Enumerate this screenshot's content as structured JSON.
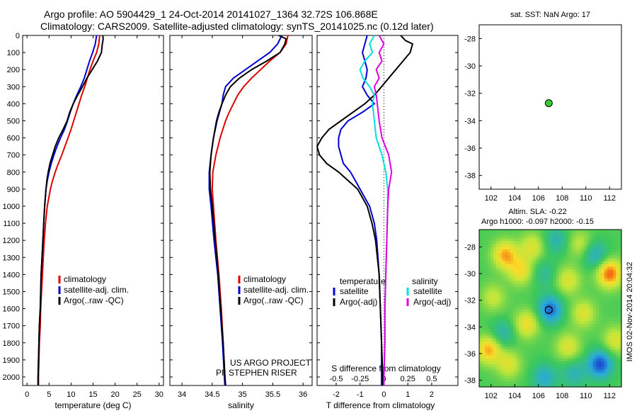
{
  "header": {
    "line1": "Argo profile: AO 5904429_1 24-Oct-2014 20141027_1364 32.72S 106.868E",
    "line2": "Climatology: CARS2009. Satellite-adjusted climatology: synTS_20141025.nc (0.12d later)"
  },
  "colors": {
    "climatology": "#e00000",
    "satellite": "#0000d0",
    "argo": "#000000",
    "sal_sat": "#00e0e0",
    "sal_argo": "#e000e0",
    "dot": "#33cc33"
  },
  "chart_data": [
    {
      "type": "line",
      "id": "temperature",
      "xlabel": "temperature (deg C)",
      "ylabel": "",
      "xlim": [
        -1,
        31
      ],
      "ylim": [
        2050,
        0
      ],
      "xticks": [
        0,
        5,
        10,
        15,
        20,
        25,
        30
      ],
      "yticks": [
        0,
        100,
        200,
        300,
        400,
        500,
        600,
        700,
        800,
        900,
        1000,
        1100,
        1200,
        1300,
        1400,
        1500,
        1600,
        1700,
        1800,
        1900,
        2000
      ],
      "legend": [
        "climatology",
        "satellite-adj. clim.",
        "Argo(..raw -QC)"
      ],
      "series": [
        {
          "name": "climatology",
          "depth": [
            0,
            50,
            100,
            150,
            200,
            250,
            300,
            350,
            400,
            450,
            500,
            550,
            600,
            650,
            700,
            750,
            800,
            850,
            900,
            1000,
            1100,
            1200,
            1300,
            1400,
            1500,
            1600,
            1700,
            1800,
            1900,
            2000,
            2050
          ],
          "values": [
            16.5,
            16.3,
            15.8,
            15.0,
            14.3,
            13.7,
            13.1,
            12.4,
            11.8,
            11.2,
            10.6,
            10.0,
            9.3,
            8.6,
            7.9,
            7.1,
            6.4,
            5.8,
            5.3,
            4.6,
            4.2,
            3.9,
            3.7,
            3.5,
            3.3,
            3.1,
            3.0,
            2.8,
            2.7,
            2.6,
            2.6
          ]
        },
        {
          "name": "satellite-adj. clim.",
          "depth": [
            0,
            50,
            100,
            150,
            200,
            250,
            300,
            350,
            400,
            450,
            500,
            550,
            600,
            650,
            700,
            750,
            800,
            850,
            900,
            1000,
            1100,
            1200,
            1300,
            1400,
            1500,
            1600,
            1700,
            1800,
            1900,
            2000,
            2050
          ],
          "values": [
            15.8,
            15.5,
            14.9,
            14.2,
            13.6,
            13.0,
            12.2,
            11.3,
            10.5,
            9.8,
            9.2,
            8.5,
            7.6,
            6.8,
            6.1,
            5.5,
            5.0,
            4.6,
            4.3,
            4.0,
            3.8,
            3.6,
            3.4,
            3.2,
            3.1,
            3.0,
            2.8,
            2.7,
            2.6,
            2.5,
            2.5
          ]
        },
        {
          "name": "Argo(..raw -QC)",
          "depth": [
            0,
            20,
            50,
            100,
            150,
            200,
            250,
            300,
            350,
            400,
            450,
            500,
            550,
            600,
            650,
            700,
            750,
            800,
            850,
            900,
            1000,
            1100,
            1200,
            1300,
            1400,
            1500,
            1600,
            1700,
            1800,
            1900,
            2000,
            2050
          ],
          "values": [
            17.2,
            17.3,
            17.1,
            16.9,
            16.0,
            14.8,
            13.6,
            12.6,
            11.5,
            10.5,
            9.7,
            9.1,
            8.2,
            7.2,
            6.4,
            5.8,
            5.2,
            4.8,
            4.5,
            4.3,
            4.0,
            3.8,
            3.6,
            3.4,
            3.2,
            3.1,
            3.0,
            2.8,
            2.7,
            2.6,
            2.5,
            2.5
          ]
        }
      ]
    },
    {
      "type": "line",
      "id": "salinity",
      "xlabel": "salinity",
      "ylabel": "",
      "xlim": [
        33.8,
        36.15
      ],
      "ylim": [
        2050,
        0
      ],
      "xticks": [
        34,
        34.5,
        35,
        35.5,
        36
      ],
      "xticklabels": [
        "34",
        "34.5",
        "35",
        "35.5",
        "36"
      ],
      "legend": [
        "climatology",
        "satellite-adj. clim.",
        "Argo(..raw -QC)"
      ],
      "annotations": [
        "US ARGO PROJECT",
        "PI: STEPHEN RISER"
      ],
      "series": [
        {
          "name": "climatology",
          "depth": [
            0,
            50,
            100,
            150,
            200,
            250,
            300,
            350,
            400,
            450,
            500,
            600,
            700,
            800,
            900,
            1000,
            1200,
            1400,
            1600,
            1800,
            2000,
            2050
          ],
          "values": [
            35.75,
            35.72,
            35.62,
            35.45,
            35.3,
            35.15,
            35.02,
            34.92,
            34.85,
            34.78,
            34.72,
            34.63,
            34.56,
            34.51,
            34.5,
            34.52,
            34.56,
            34.61,
            34.65,
            34.68,
            34.71,
            34.72
          ]
        },
        {
          "name": "satellite-adj. clim.",
          "depth": [
            0,
            50,
            100,
            150,
            200,
            250,
            300,
            350,
            400,
            450,
            500,
            600,
            700,
            800,
            900,
            1000,
            1200,
            1400,
            1600,
            1800,
            2000,
            2050
          ],
          "values": [
            35.65,
            35.58,
            35.45,
            35.25,
            35.05,
            34.85,
            34.72,
            34.68,
            34.66,
            34.62,
            34.58,
            34.52,
            34.48,
            34.45,
            34.45,
            34.48,
            34.53,
            34.59,
            34.63,
            34.67,
            34.7,
            34.71
          ]
        },
        {
          "name": "Argo(..raw -QC)",
          "depth": [
            0,
            20,
            50,
            100,
            150,
            200,
            250,
            300,
            350,
            400,
            450,
            500,
            600,
            700,
            800,
            900,
            1000,
            1200,
            1400,
            1600,
            1800,
            2000,
            2050
          ],
          "values": [
            35.6,
            35.72,
            35.7,
            35.62,
            35.4,
            35.15,
            34.95,
            34.8,
            34.72,
            34.66,
            34.61,
            34.57,
            34.52,
            34.48,
            34.46,
            34.47,
            34.5,
            34.55,
            34.6,
            34.64,
            34.68,
            34.71,
            34.72
          ]
        }
      ]
    },
    {
      "type": "line",
      "id": "differences",
      "xlabel": "T difference from climatology",
      "xlabel_top": "S difference from climatology",
      "xlim": [
        -2.8,
        3.1
      ],
      "ylim": [
        2050,
        0
      ],
      "xticks": [
        -2,
        -1,
        0,
        1,
        2
      ],
      "xticks_top": [
        -0.5,
        -0.25,
        0,
        0.25,
        0.5
      ],
      "xticklabels_top": [
        "-0.5",
        "-0.25",
        "0",
        "0.25",
        "0.5"
      ],
      "legend_headers": [
        "temperature",
        "salinity"
      ],
      "legend": [
        "satellite",
        "Argo(-adj)",
        "satellite",
        "Argo(-adj)"
      ],
      "series": [
        {
          "name": "temperature satellite",
          "depth": [
            0,
            50,
            100,
            150,
            200,
            250,
            300,
            350,
            400,
            450,
            500,
            550,
            600,
            650,
            700,
            750,
            800,
            850,
            900,
            1000,
            1100,
            1200,
            1400,
            1600,
            1800,
            2000,
            2050
          ],
          "values": [
            -0.7,
            -0.8,
            -0.9,
            -0.8,
            -0.7,
            -0.75,
            -0.9,
            -0.7,
            -0.4,
            -0.9,
            -1.5,
            -1.8,
            -1.9,
            -1.9,
            -1.8,
            -1.7,
            -1.4,
            -1.2,
            -1.0,
            -0.6,
            -0.4,
            -0.3,
            -0.2,
            -0.15,
            -0.1,
            -0.1,
            -0.1
          ]
        },
        {
          "name": "temperature Argo(-adj)",
          "depth": [
            0,
            30,
            50,
            100,
            150,
            200,
            250,
            300,
            350,
            400,
            450,
            500,
            550,
            600,
            650,
            700,
            750,
            800,
            850,
            900,
            1000,
            1100,
            1200,
            1400,
            1600,
            1800,
            2000,
            2050
          ],
          "values": [
            0.7,
            0.9,
            1.2,
            1.1,
            0.8,
            0.5,
            0.2,
            -0.1,
            -0.4,
            -0.8,
            -1.3,
            -1.8,
            -2.3,
            -2.6,
            -2.8,
            -2.7,
            -2.4,
            -1.9,
            -1.5,
            -1.1,
            -0.7,
            -0.5,
            -0.35,
            -0.2,
            -0.15,
            -0.1,
            -0.05,
            -0.05
          ]
        },
        {
          "name": "salinity satellite",
          "depth": [
            0,
            50,
            100,
            150,
            200,
            250,
            300,
            350,
            400,
            500,
            600,
            700,
            800,
            900,
            1000,
            1200,
            1400,
            1600,
            1800,
            2000,
            2050
          ],
          "values": [
            -0.1,
            -0.15,
            -0.12,
            -0.2,
            -0.25,
            -0.22,
            -0.15,
            -0.1,
            -0.12,
            -0.1,
            -0.08,
            -0.02,
            0.02,
            0.04,
            0.04,
            0.03,
            0.02,
            0.01,
            0.01,
            0.0,
            0.0
          ]
        },
        {
          "name": "salinity Argo(-adj)",
          "depth": [
            0,
            50,
            100,
            150,
            200,
            250,
            300,
            350,
            400,
            500,
            600,
            700,
            800,
            900,
            1000,
            1200,
            1400,
            1600,
            1800,
            2000,
            2050
          ],
          "values": [
            -0.05,
            0.0,
            -0.05,
            -0.02,
            -0.08,
            -0.05,
            -0.1,
            -0.08,
            -0.07,
            -0.05,
            -0.02,
            0.05,
            0.08,
            0.05,
            0.04,
            0.03,
            0.02,
            0.01,
            0.01,
            0.0,
            0.0
          ]
        }
      ]
    },
    {
      "type": "scatter",
      "id": "sst_map",
      "title": "sat. SST: NaN Argo: 17",
      "xlim": [
        101,
        113
      ],
      "ylim": [
        -39,
        -27
      ],
      "xticks": [
        102,
        104,
        106,
        108,
        110,
        112
      ],
      "yticks": [
        -28,
        -30,
        -32,
        -34,
        -36,
        -38
      ],
      "points": [
        {
          "x": 106.87,
          "y": -32.72
        }
      ]
    },
    {
      "type": "heatmap",
      "id": "sla_map",
      "title": "Altim. SLA: -0.22",
      "subtitle": "Argo h1000: -0.097 h2000: -0.15",
      "xlim": [
        101,
        113
      ],
      "ylim": [
        -38.5,
        -26.7
      ],
      "xticks": [
        102,
        104,
        106,
        108,
        110,
        112
      ],
      "yticks": [
        -28,
        -30,
        -32,
        -34,
        -36,
        -38
      ],
      "points": [
        {
          "x": 106.87,
          "y": -32.72
        }
      ],
      "blobs": [
        {
          "x": 103.2,
          "y": -28.6,
          "v": 0.8
        },
        {
          "x": 105.5,
          "y": -28.0,
          "v": 0.5
        },
        {
          "x": 109.5,
          "y": -27.8,
          "v": 0.4
        },
        {
          "x": 112.0,
          "y": -30.0,
          "v": 1.0
        },
        {
          "x": 104.5,
          "y": -29.8,
          "v": 0.6
        },
        {
          "x": 108.5,
          "y": -30.5,
          "v": 0.5
        },
        {
          "x": 102.2,
          "y": -31.8,
          "v": 0.4
        },
        {
          "x": 105.0,
          "y": -33.8,
          "v": 0.6
        },
        {
          "x": 109.8,
          "y": -33.0,
          "v": 0.5
        },
        {
          "x": 101.8,
          "y": -35.7,
          "v": 0.8
        },
        {
          "x": 103.5,
          "y": -36.8,
          "v": 0.5
        },
        {
          "x": 108.5,
          "y": -35.5,
          "v": 0.5
        },
        {
          "x": 112.5,
          "y": -35.0,
          "v": 0.5
        },
        {
          "x": 107.0,
          "y": -32.7,
          "v": -0.8
        },
        {
          "x": 111.2,
          "y": -36.8,
          "v": -0.9
        },
        {
          "x": 106.5,
          "y": -37.8,
          "v": -0.5
        },
        {
          "x": 107.5,
          "y": -27.5,
          "v": -0.4
        },
        {
          "x": 110.8,
          "y": -28.6,
          "v": -0.5
        },
        {
          "x": 103.0,
          "y": -34.5,
          "v": -0.4
        },
        {
          "x": 109.0,
          "y": -37.5,
          "v": -0.4
        },
        {
          "x": 106.5,
          "y": -30.0,
          "v": -0.3
        }
      ]
    }
  ],
  "sidebar_stamp": "IMOS 02-Nov-2014 20:04:32"
}
